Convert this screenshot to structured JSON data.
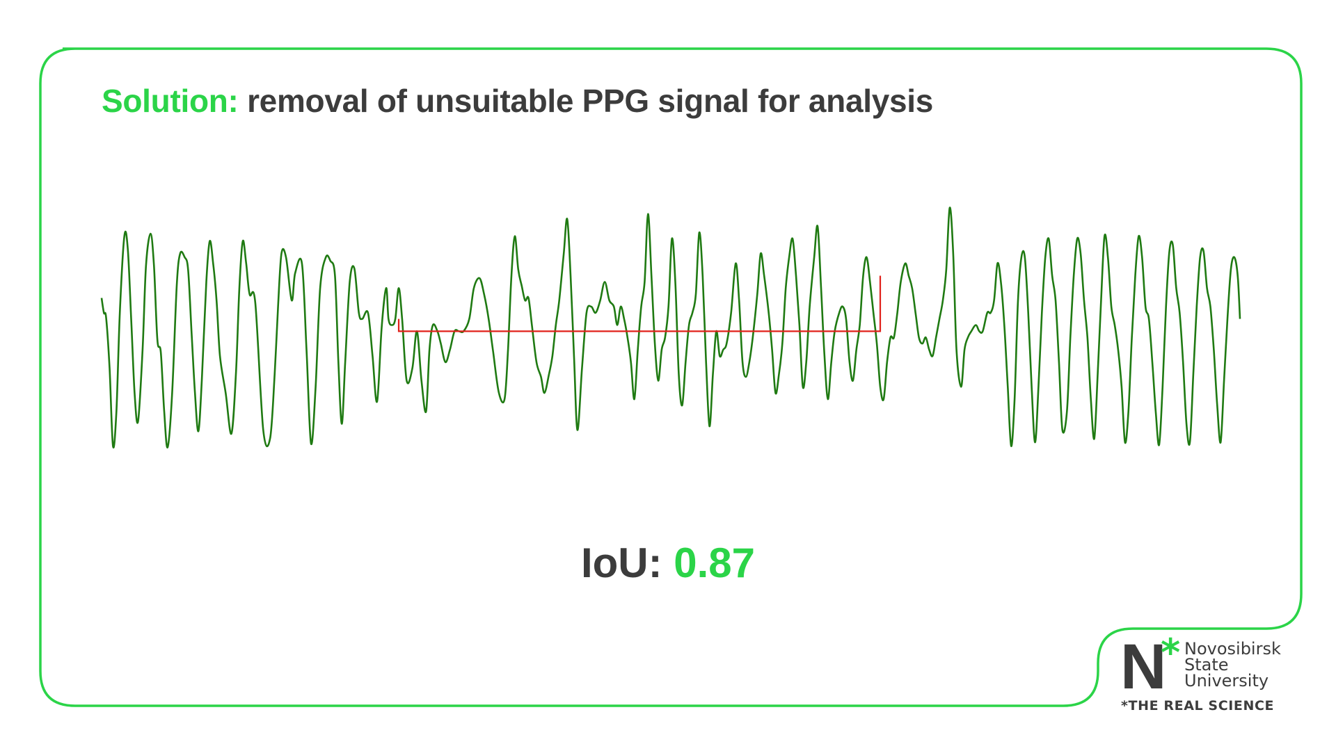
{
  "colors": {
    "accent": "#2bd448",
    "frame": "#2bd448",
    "text": "#3c3c3c",
    "signal": "#1f7a12",
    "mask": "#e0201a"
  },
  "title": {
    "prefix": "Solution:",
    "text": "removal of unsuitable PPG signal for analysis"
  },
  "metric": {
    "label": "IoU:",
    "value": "0.87"
  },
  "logo": {
    "letter": "N",
    "star": "*",
    "name_line1": "Novosibirsk",
    "name_line2": "State",
    "name_line3": "University",
    "tagline": "*THE REAL SCIENCE"
  },
  "chart_data": {
    "type": "line",
    "title": "",
    "xlabel": "",
    "ylabel": "",
    "xlim": [
      0,
      100
    ],
    "ylim": [
      -1,
      1
    ],
    "grid": false,
    "series": [
      {
        "style": "signal",
        "color": "#1f7a12",
        "x": [
          0,
          0.2,
          0.4,
          0.7,
          1.0,
          1.3,
          1.6,
          2.0,
          2.3,
          2.6,
          2.9,
          3.2,
          3.6,
          3.9,
          4.3,
          4.6,
          4.9,
          5.2,
          5.5,
          5.8,
          6.2,
          6.6,
          6.9,
          7.3,
          7.6,
          7.9,
          8.2,
          8.5,
          8.8,
          9.2,
          9.5,
          9.8,
          10.1,
          10.4,
          10.9,
          11.4,
          11.8,
          12.1,
          12.4,
          12.7,
          13.0,
          13.5,
          14.2,
          14.8,
          15.2,
          15.5,
          15.8,
          16.2,
          16.7,
          17.0,
          17.6,
          18.0,
          18.4,
          18.8,
          19.2,
          19.7,
          20.1,
          20.5,
          20.8,
          21.1,
          21.4,
          21.8,
          22.2,
          22.6,
          22.9,
          23.4,
          23.8,
          24.2,
          24.6,
          25.0,
          25.2,
          25.5,
          25.8,
          26.1,
          26.4,
          26.8,
          27.3,
          27.7,
          28.1,
          28.5,
          28.8,
          29.1,
          29.5,
          29.8,
          30.2,
          30.6,
          31.0,
          31.4,
          31.8,
          32.3,
          32.7,
          33.2,
          33.6,
          34.0,
          34.4,
          34.9,
          35.4,
          35.7,
          36.0,
          36.3,
          36.6,
          36.9,
          37.2,
          37.5,
          37.8,
          38.2,
          38.6,
          38.9,
          39.3,
          39.6,
          39.9,
          40.2,
          40.6,
          40.9,
          41.2,
          41.5,
          41.8,
          42.2,
          42.6,
          43.0,
          43.4,
          43.8,
          44.2,
          44.6,
          45.0,
          45.3,
          45.6,
          45.9,
          46.2,
          46.5,
          46.8,
          47.1,
          47.4,
          47.7,
          48.0,
          48.3,
          48.6,
          48.9,
          49.2,
          49.5,
          49.8,
          50.1,
          50.4,
          50.7,
          51.0,
          51.3,
          51.6,
          51.9,
          52.2,
          52.5,
          52.8,
          53.1,
          53.4,
          53.7,
          54.0,
          54.3,
          54.6,
          54.9,
          55.3,
          55.7,
          56.0,
          56.3,
          56.6,
          56.9,
          57.2,
          57.6,
          57.9,
          58.2,
          58.6,
          58.9,
          59.2,
          59.5,
          59.8,
          60.1,
          60.4,
          60.7,
          61.0,
          61.3,
          61.6,
          61.9,
          62.2,
          62.6,
          62.9,
          63.2,
          63.5,
          63.8,
          64.1,
          64.4,
          64.8,
          65.1,
          65.4,
          65.7,
          66.0,
          66.3,
          66.6,
          66.9,
          67.2,
          67.5,
          67.8,
          68.1,
          68.4,
          68.7,
          69.0,
          69.3,
          69.6,
          69.9,
          70.2,
          70.6,
          70.9,
          71.2,
          71.5,
          71.8,
          72.1,
          72.4,
          72.7,
          73.0,
          73.3,
          73.6,
          73.9,
          74.2,
          74.5,
          74.8,
          75.1,
          75.5,
          75.8,
          76.1,
          76.4,
          76.8,
          77.1,
          77.4,
          77.8,
          78.1,
          78.4,
          78.7,
          79.0,
          79.3,
          79.6,
          79.9,
          80.2,
          80.5,
          80.8,
          81.1,
          81.4,
          81.7,
          82.0,
          82.3,
          82.6,
          82.9,
          83.2,
          83.5,
          83.8,
          84.1,
          84.4,
          84.8,
          85.1,
          85.4,
          85.7,
          86.0,
          86.3,
          86.6,
          86.9,
          87.2,
          87.5,
          87.8,
          88.1,
          88.4,
          88.7,
          89.0,
          89.3,
          89.6,
          89.9,
          90.2,
          90.5,
          90.8,
          91.1,
          91.4,
          91.7,
          92.0,
          92.3,
          92.6,
          92.9,
          93.2,
          93.5,
          93.8,
          94.1,
          94.4,
          94.7,
          95.0,
          95.3,
          95.6,
          95.9,
          96.2,
          96.5,
          96.8,
          97.1,
          97.4,
          97.7,
          98.0,
          98.3,
          98.6,
          98.9,
          99.2,
          99.5,
          99.8,
          100
        ],
        "y": [
          0.22,
          0.1,
          0.06,
          -0.35,
          -0.98,
          -0.7,
          0.1,
          0.72,
          0.62,
          0.05,
          -0.55,
          -0.78,
          -0.2,
          0.48,
          0.74,
          0.48,
          -0.12,
          -0.22,
          -0.7,
          -0.99,
          -0.55,
          0.32,
          0.58,
          0.55,
          0.45,
          -0.05,
          -0.55,
          -0.86,
          -0.45,
          0.35,
          0.68,
          0.5,
          0.2,
          -0.25,
          -0.55,
          -0.88,
          -0.4,
          0.3,
          0.68,
          0.5,
          0.25,
          0.18,
          -0.85,
          -0.92,
          -0.4,
          0.15,
          0.58,
          0.55,
          0.2,
          0.42,
          0.5,
          -0.2,
          -0.96,
          -0.5,
          0.3,
          0.55,
          0.52,
          0.4,
          -0.3,
          -0.8,
          -0.3,
          0.35,
          0.46,
          0.1,
          0.05,
          0.1,
          -0.25,
          -0.62,
          -0.02,
          0.3,
          0.05,
          0.0,
          0.05,
          0.3,
          0.05,
          -0.45,
          -0.35,
          -0.05,
          -0.45,
          -0.7,
          -0.2,
          0.0,
          -0.05,
          -0.15,
          -0.3,
          -0.2,
          -0.05,
          -0.05,
          -0.05,
          0.05,
          0.3,
          0.38,
          0.25,
          0.05,
          -0.22,
          -0.55,
          -0.6,
          -0.2,
          0.4,
          0.72,
          0.45,
          0.32,
          0.2,
          0.22,
          0.0,
          -0.3,
          -0.42,
          -0.55,
          -0.4,
          -0.25,
          0.0,
          0.2,
          0.58,
          0.86,
          0.4,
          -0.25,
          -0.85,
          -0.35,
          0.1,
          0.15,
          0.1,
          0.2,
          0.35,
          0.2,
          0.15,
          0.0,
          0.15,
          0.05,
          -0.1,
          -0.3,
          -0.6,
          -0.2,
          0.15,
          0.35,
          0.9,
          0.4,
          -0.15,
          -0.45,
          -0.2,
          -0.1,
          0.15,
          0.7,
          0.35,
          -0.4,
          -0.65,
          -0.3,
          0.0,
          0.1,
          0.25,
          0.75,
          0.4,
          -0.3,
          -0.82,
          -0.4,
          -0.05,
          -0.25,
          -0.2,
          -0.15,
          0.1,
          0.5,
          0.2,
          -0.3,
          -0.42,
          -0.3,
          -0.1,
          0.25,
          0.58,
          0.4,
          0.1,
          -0.2,
          -0.55,
          -0.4,
          -0.15,
          0.3,
          0.55,
          0.7,
          0.4,
          0.0,
          -0.5,
          -0.3,
          0.15,
          0.55,
          0.8,
          0.3,
          -0.25,
          -0.6,
          -0.3,
          -0.05,
          0.1,
          0.15,
          0.05,
          -0.3,
          -0.45,
          -0.2,
          0.0,
          0.4,
          0.55,
          0.35,
          0.1,
          -0.15,
          -0.5,
          -0.6,
          -0.3,
          -0.1,
          -0.1,
          0.1,
          0.35,
          0.5,
          0.4,
          0.3,
          0.1,
          -0.1,
          -0.15,
          -0.1,
          -0.2,
          -0.25,
          -0.1,
          0.05,
          0.2,
          0.45,
          0.95,
          0.6,
          -0.2,
          -0.5,
          -0.2,
          -0.1,
          -0.05,
          0.0,
          -0.05,
          -0.05,
          0.1,
          0.1,
          0.2,
          0.5,
          0.35,
          0.0,
          -0.5,
          -0.98,
          -0.6,
          0.2,
          0.55,
          0.55,
          0.1,
          -0.5,
          -0.95,
          -0.5,
          0.1,
          0.55,
          0.7,
          0.4,
          0.2,
          -0.3,
          -0.85,
          -0.7,
          -0.1,
          0.4,
          0.7,
          0.58,
          0.2,
          -0.1,
          -0.6,
          -0.92,
          -0.4,
          0.2,
          0.72,
          0.55,
          0.15,
          0.0,
          -0.2,
          -0.5,
          -0.95,
          -0.7,
          -0.1,
          0.4,
          0.72,
          0.55,
          0.15,
          0.05,
          -0.3,
          -0.7,
          -0.97,
          -0.5,
          0.15,
          0.6,
          0.65,
          0.3,
          0.1,
          -0.3,
          -0.8,
          -0.95,
          -0.4,
          0.15,
          0.55,
          0.6,
          0.3,
          0.15,
          -0.2,
          -0.65,
          -0.95,
          -0.45,
          0.05,
          0.45,
          0.55,
          0.4,
          0.05
        ]
      }
    ],
    "annotations": [
      {
        "type": "mask-bracket",
        "color": "#e0201a",
        "x_start": 26.1,
        "x_end": 68.4,
        "y_level": -0.05,
        "y_start": 0.05,
        "y_end": 0.4
      }
    ]
  }
}
